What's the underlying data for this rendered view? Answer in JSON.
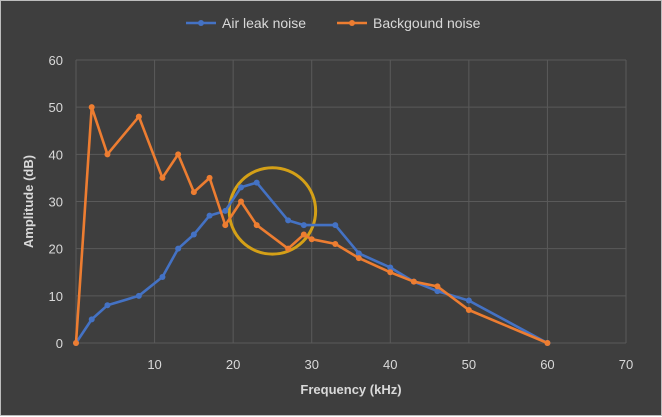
{
  "chart_data": {
    "type": "line",
    "title": "",
    "xlabel": "Frequency (kHz)",
    "ylabel": "Amplitude (dB)",
    "xlim": [
      0,
      70
    ],
    "ylim": [
      0,
      60
    ],
    "xticks": [
      10,
      20,
      30,
      40,
      50,
      60,
      70
    ],
    "yticks": [
      0,
      10,
      20,
      30,
      40,
      50,
      60
    ],
    "grid": true,
    "legend_position": "top-center",
    "series": [
      {
        "name": "Air leak noise",
        "color": "#4472c4",
        "points": [
          [
            0,
            0
          ],
          [
            2,
            5
          ],
          [
            4,
            8
          ],
          [
            8,
            10
          ],
          [
            11,
            14
          ],
          [
            13,
            20
          ],
          [
            15,
            23
          ],
          [
            17,
            27
          ],
          [
            19,
            28
          ],
          [
            21,
            33
          ],
          [
            23,
            34
          ],
          [
            27,
            26
          ],
          [
            29,
            25
          ],
          [
            33,
            25
          ],
          [
            36,
            19
          ],
          [
            40,
            16
          ],
          [
            43,
            13
          ],
          [
            46,
            11
          ],
          [
            50,
            9
          ],
          [
            60,
            0
          ]
        ]
      },
      {
        "name": "Backgound noise",
        "color": "#ed7d31",
        "points": [
          [
            0,
            0
          ],
          [
            2,
            50
          ],
          [
            4,
            40
          ],
          [
            8,
            48
          ],
          [
            11,
            35
          ],
          [
            13,
            40
          ],
          [
            15,
            32
          ],
          [
            17,
            35
          ],
          [
            19,
            25
          ],
          [
            21,
            30
          ],
          [
            23,
            25
          ],
          [
            27,
            20
          ],
          [
            29,
            23
          ],
          [
            30,
            22
          ],
          [
            33,
            21
          ],
          [
            36,
            18
          ],
          [
            40,
            15
          ],
          [
            43,
            13
          ],
          [
            46,
            12
          ],
          [
            50,
            7
          ],
          [
            60,
            0
          ]
        ]
      }
    ],
    "annotations": [
      {
        "type": "circle",
        "center": [
          25,
          28
        ],
        "radius_x_units": 5.5,
        "color": "#d4a017"
      }
    ]
  }
}
